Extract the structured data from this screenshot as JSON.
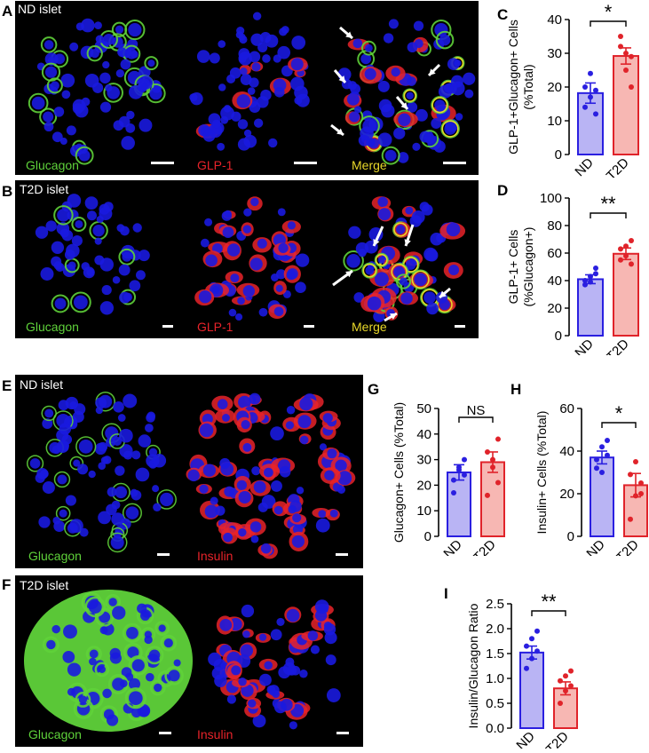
{
  "panels": {
    "A": {
      "letter": "A",
      "islet": "ND islet",
      "ch1": "Glucagon",
      "ch2": "GLP-1",
      "ch3": "Merge"
    },
    "B": {
      "letter": "B",
      "islet": "T2D islet",
      "ch1": "Glucagon",
      "ch2": "GLP-1",
      "ch3": "Merge"
    },
    "E": {
      "letter": "E",
      "islet": "ND islet",
      "ch1": "Glucagon",
      "ch2": "Insulin"
    },
    "F": {
      "letter": "F",
      "islet": "T2D islet",
      "ch1": "Glucagon",
      "ch2": "Insulin"
    }
  },
  "colors": {
    "glucagon": "#5fd23a",
    "glp1": "#e8232a",
    "merge": "#e8d82a",
    "nuclei": "#1a1adf",
    "nd": "#2a1fe0",
    "t2d": "#e0232a"
  },
  "chart_data": [
    {
      "id": "C",
      "letter": "C",
      "type": "bar",
      "categories": [
        "ND",
        "T2D"
      ],
      "values": [
        18.2,
        29.2
      ],
      "sem": [
        3.0,
        2.4
      ],
      "points": [
        [
          14,
          17,
          19,
          20,
          24,
          12
        ],
        [
          32,
          25,
          29,
          35,
          30,
          20
        ]
      ],
      "ylim": [
        0,
        40
      ],
      "yticks": [
        0,
        10,
        20,
        30,
        40
      ],
      "ylabel": [
        "GLP-1+Glucagon+ Cells",
        "(%Total)"
      ],
      "sig": "*"
    },
    {
      "id": "D",
      "letter": "D",
      "type": "bar",
      "categories": [
        "ND",
        "T2D"
      ],
      "values": [
        41,
        59.5
      ],
      "sem": [
        3.2,
        4.2
      ],
      "points": [
        [
          37,
          43,
          45,
          40,
          39,
          49
        ],
        [
          55,
          58,
          69,
          63,
          65,
          52
        ]
      ],
      "ylim": [
        0,
        100
      ],
      "yticks": [
        0,
        20,
        40,
        60,
        80,
        100
      ],
      "ylabel": [
        "GLP-1+ Cells",
        "(%Glucagon+)"
      ],
      "sig": "**"
    },
    {
      "id": "G",
      "letter": "G",
      "type": "bar",
      "categories": [
        "ND",
        "T2D"
      ],
      "values": [
        25,
        29
      ],
      "sem": [
        3,
        4
      ],
      "points": [
        [
          17,
          26,
          30,
          22,
          27,
          24
        ],
        [
          16,
          30,
          38,
          33,
          27,
          21
        ]
      ],
      "ylim": [
        0,
        50
      ],
      "yticks": [
        0,
        10,
        20,
        30,
        40,
        50
      ],
      "ylabel": [
        "Glucagon+ Cells (%Total)"
      ],
      "sig": "NS"
    },
    {
      "id": "H",
      "letter": "H",
      "type": "bar",
      "categories": [
        "ND",
        "T2D"
      ],
      "values": [
        37,
        24
      ],
      "sem": [
        3,
        5.5
      ],
      "points": [
        [
          32,
          42,
          45,
          36,
          30,
          38
        ],
        [
          8,
          19,
          25,
          29,
          35,
          20
        ]
      ],
      "ylim": [
        0,
        60
      ],
      "yticks": [
        0,
        20,
        40,
        60
      ],
      "ylabel": [
        "Insulin+ Cells (%Total)"
      ],
      "sig": "*"
    },
    {
      "id": "I",
      "letter": "I",
      "type": "bar",
      "categories": [
        "ND",
        "T2D"
      ],
      "values": [
        1.52,
        0.8
      ],
      "sem": [
        0.13,
        0.13
      ],
      "points": [
        [
          1.2,
          1.4,
          1.55,
          1.65,
          1.8,
          1.95
        ],
        [
          0.5,
          0.75,
          0.85,
          0.95,
          1.05,
          1.15
        ]
      ],
      "ylim": [
        0,
        2.5
      ],
      "yticks": [
        "0.0",
        "0.5",
        "1.0",
        "1.5",
        "2.0",
        "2.5"
      ],
      "ylabel": [
        "Insulin/Glucagon Ratio"
      ],
      "sig": "**"
    }
  ]
}
